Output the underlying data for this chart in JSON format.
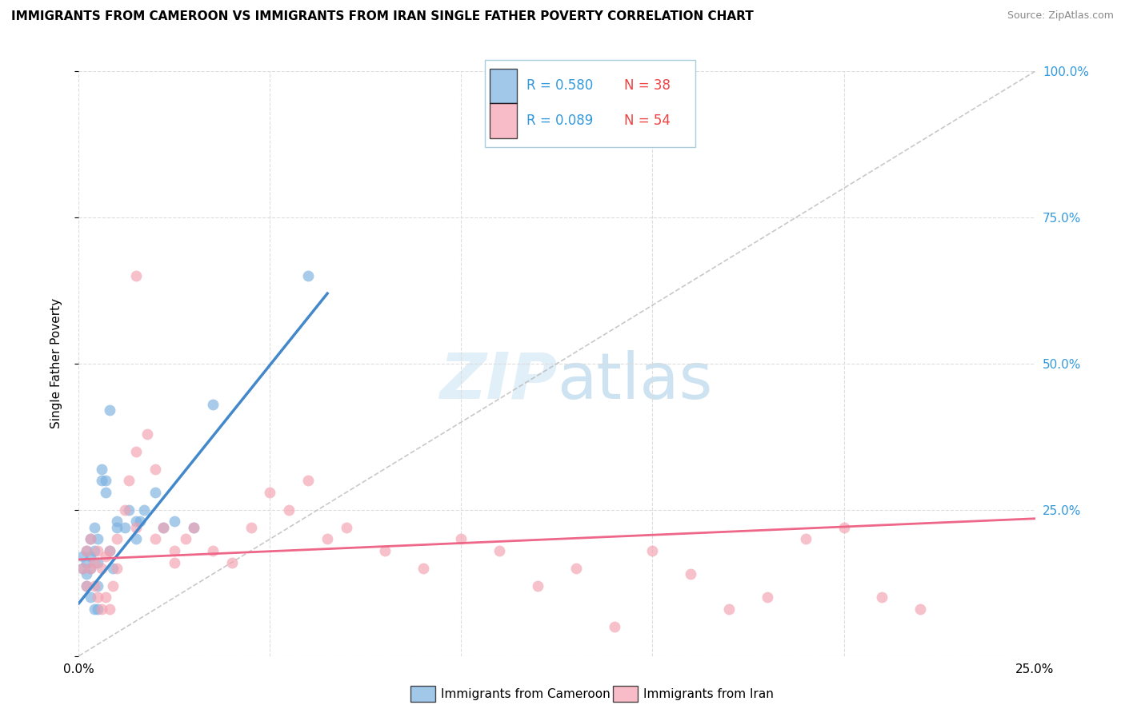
{
  "title": "IMMIGRANTS FROM CAMEROON VS IMMIGRANTS FROM IRAN SINGLE FATHER POVERTY CORRELATION CHART",
  "source": "Source: ZipAtlas.com",
  "ylabel": "Single Father Poverty",
  "legend_cameroon_r": "R = 0.580",
  "legend_cameroon_n": "N = 38",
  "legend_iran_r": "R = 0.089",
  "legend_iran_n": "N = 54",
  "cameroon_color": "#7ab0e0",
  "iran_color": "#f4a0b0",
  "line_cameroon_color": "#4488cc",
  "line_iran_color": "#ee6688",
  "diagonal_color": "#bbbbbb",
  "xlim": [
    0.0,
    0.25
  ],
  "ylim": [
    0.0,
    1.0
  ],
  "cameroon_x": [
    0.001,
    0.001,
    0.002,
    0.002,
    0.002,
    0.002,
    0.003,
    0.003,
    0.003,
    0.003,
    0.004,
    0.004,
    0.004,
    0.005,
    0.005,
    0.005,
    0.005,
    0.006,
    0.006,
    0.007,
    0.007,
    0.008,
    0.008,
    0.009,
    0.01,
    0.01,
    0.012,
    0.013,
    0.015,
    0.015,
    0.016,
    0.017,
    0.02,
    0.022,
    0.025,
    0.03,
    0.035,
    0.06
  ],
  "cameroon_y": [
    0.17,
    0.15,
    0.18,
    0.16,
    0.14,
    0.12,
    0.2,
    0.17,
    0.15,
    0.1,
    0.22,
    0.18,
    0.08,
    0.2,
    0.16,
    0.12,
    0.08,
    0.32,
    0.3,
    0.3,
    0.28,
    0.42,
    0.18,
    0.15,
    0.23,
    0.22,
    0.22,
    0.25,
    0.23,
    0.2,
    0.23,
    0.25,
    0.28,
    0.22,
    0.23,
    0.22,
    0.43,
    0.65
  ],
  "iran_x": [
    0.001,
    0.002,
    0.002,
    0.003,
    0.003,
    0.004,
    0.004,
    0.005,
    0.005,
    0.006,
    0.006,
    0.007,
    0.007,
    0.008,
    0.008,
    0.009,
    0.01,
    0.01,
    0.012,
    0.013,
    0.015,
    0.015,
    0.018,
    0.02,
    0.022,
    0.025,
    0.028,
    0.03,
    0.035,
    0.04,
    0.045,
    0.05,
    0.055,
    0.06,
    0.065,
    0.07,
    0.08,
    0.09,
    0.1,
    0.11,
    0.12,
    0.13,
    0.14,
    0.15,
    0.16,
    0.17,
    0.18,
    0.19,
    0.2,
    0.21,
    0.22,
    0.015,
    0.02,
    0.025
  ],
  "iran_y": [
    0.15,
    0.18,
    0.12,
    0.2,
    0.15,
    0.16,
    0.12,
    0.18,
    0.1,
    0.15,
    0.08,
    0.17,
    0.1,
    0.18,
    0.08,
    0.12,
    0.2,
    0.15,
    0.25,
    0.3,
    0.35,
    0.22,
    0.38,
    0.32,
    0.22,
    0.18,
    0.2,
    0.22,
    0.18,
    0.16,
    0.22,
    0.28,
    0.25,
    0.3,
    0.2,
    0.22,
    0.18,
    0.15,
    0.2,
    0.18,
    0.12,
    0.15,
    0.05,
    0.18,
    0.14,
    0.08,
    0.1,
    0.2,
    0.22,
    0.1,
    0.08,
    0.65,
    0.2,
    0.16
  ],
  "cam_line_x0": 0.0,
  "cam_line_x1": 0.065,
  "cam_line_y0": 0.09,
  "cam_line_y1": 0.62,
  "iran_line_x0": 0.0,
  "iran_line_x1": 0.25,
  "iran_line_y0": 0.165,
  "iran_line_y1": 0.235
}
